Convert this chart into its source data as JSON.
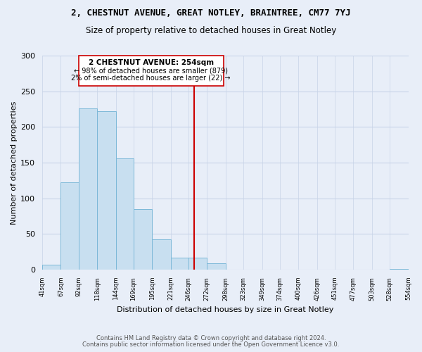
{
  "title": "2, CHESTNUT AVENUE, GREAT NOTLEY, BRAINTREE, CM77 7YJ",
  "subtitle": "Size of property relative to detached houses in Great Notley",
  "xlabel": "Distribution of detached houses by size in Great Notley",
  "ylabel": "Number of detached properties",
  "bar_edges": [
    41,
    67,
    92,
    118,
    144,
    169,
    195,
    221,
    246,
    272,
    298,
    323,
    349,
    374,
    400,
    426,
    451,
    477,
    503,
    528,
    554
  ],
  "bar_heights": [
    7,
    122,
    226,
    222,
    156,
    85,
    42,
    17,
    17,
    9,
    0,
    0,
    0,
    0,
    0,
    0,
    0,
    0,
    0,
    1
  ],
  "bar_color": "#c8dff0",
  "bar_edgecolor": "#7cb8d8",
  "property_line_x": 254,
  "property_line_color": "#cc0000",
  "annotation_title": "2 CHESTNUT AVENUE: 254sqm",
  "annotation_line1": "← 98% of detached houses are smaller (879)",
  "annotation_line2": "2% of semi-detached houses are larger (22) →",
  "annotation_box_edgecolor": "#cc0000",
  "ylim": [
    0,
    300
  ],
  "tick_labels": [
    "41sqm",
    "67sqm",
    "92sqm",
    "118sqm",
    "144sqm",
    "169sqm",
    "195sqm",
    "221sqm",
    "246sqm",
    "272sqm",
    "298sqm",
    "323sqm",
    "349sqm",
    "374sqm",
    "400sqm",
    "426sqm",
    "451sqm",
    "477sqm",
    "503sqm",
    "528sqm",
    "554sqm"
  ],
  "footnote1": "Contains HM Land Registry data © Crown copyright and database right 2024.",
  "footnote2": "Contains public sector information licensed under the Open Government Licence v3.0.",
  "background_color": "#e8eef8",
  "grid_color": "#c8d4e8"
}
